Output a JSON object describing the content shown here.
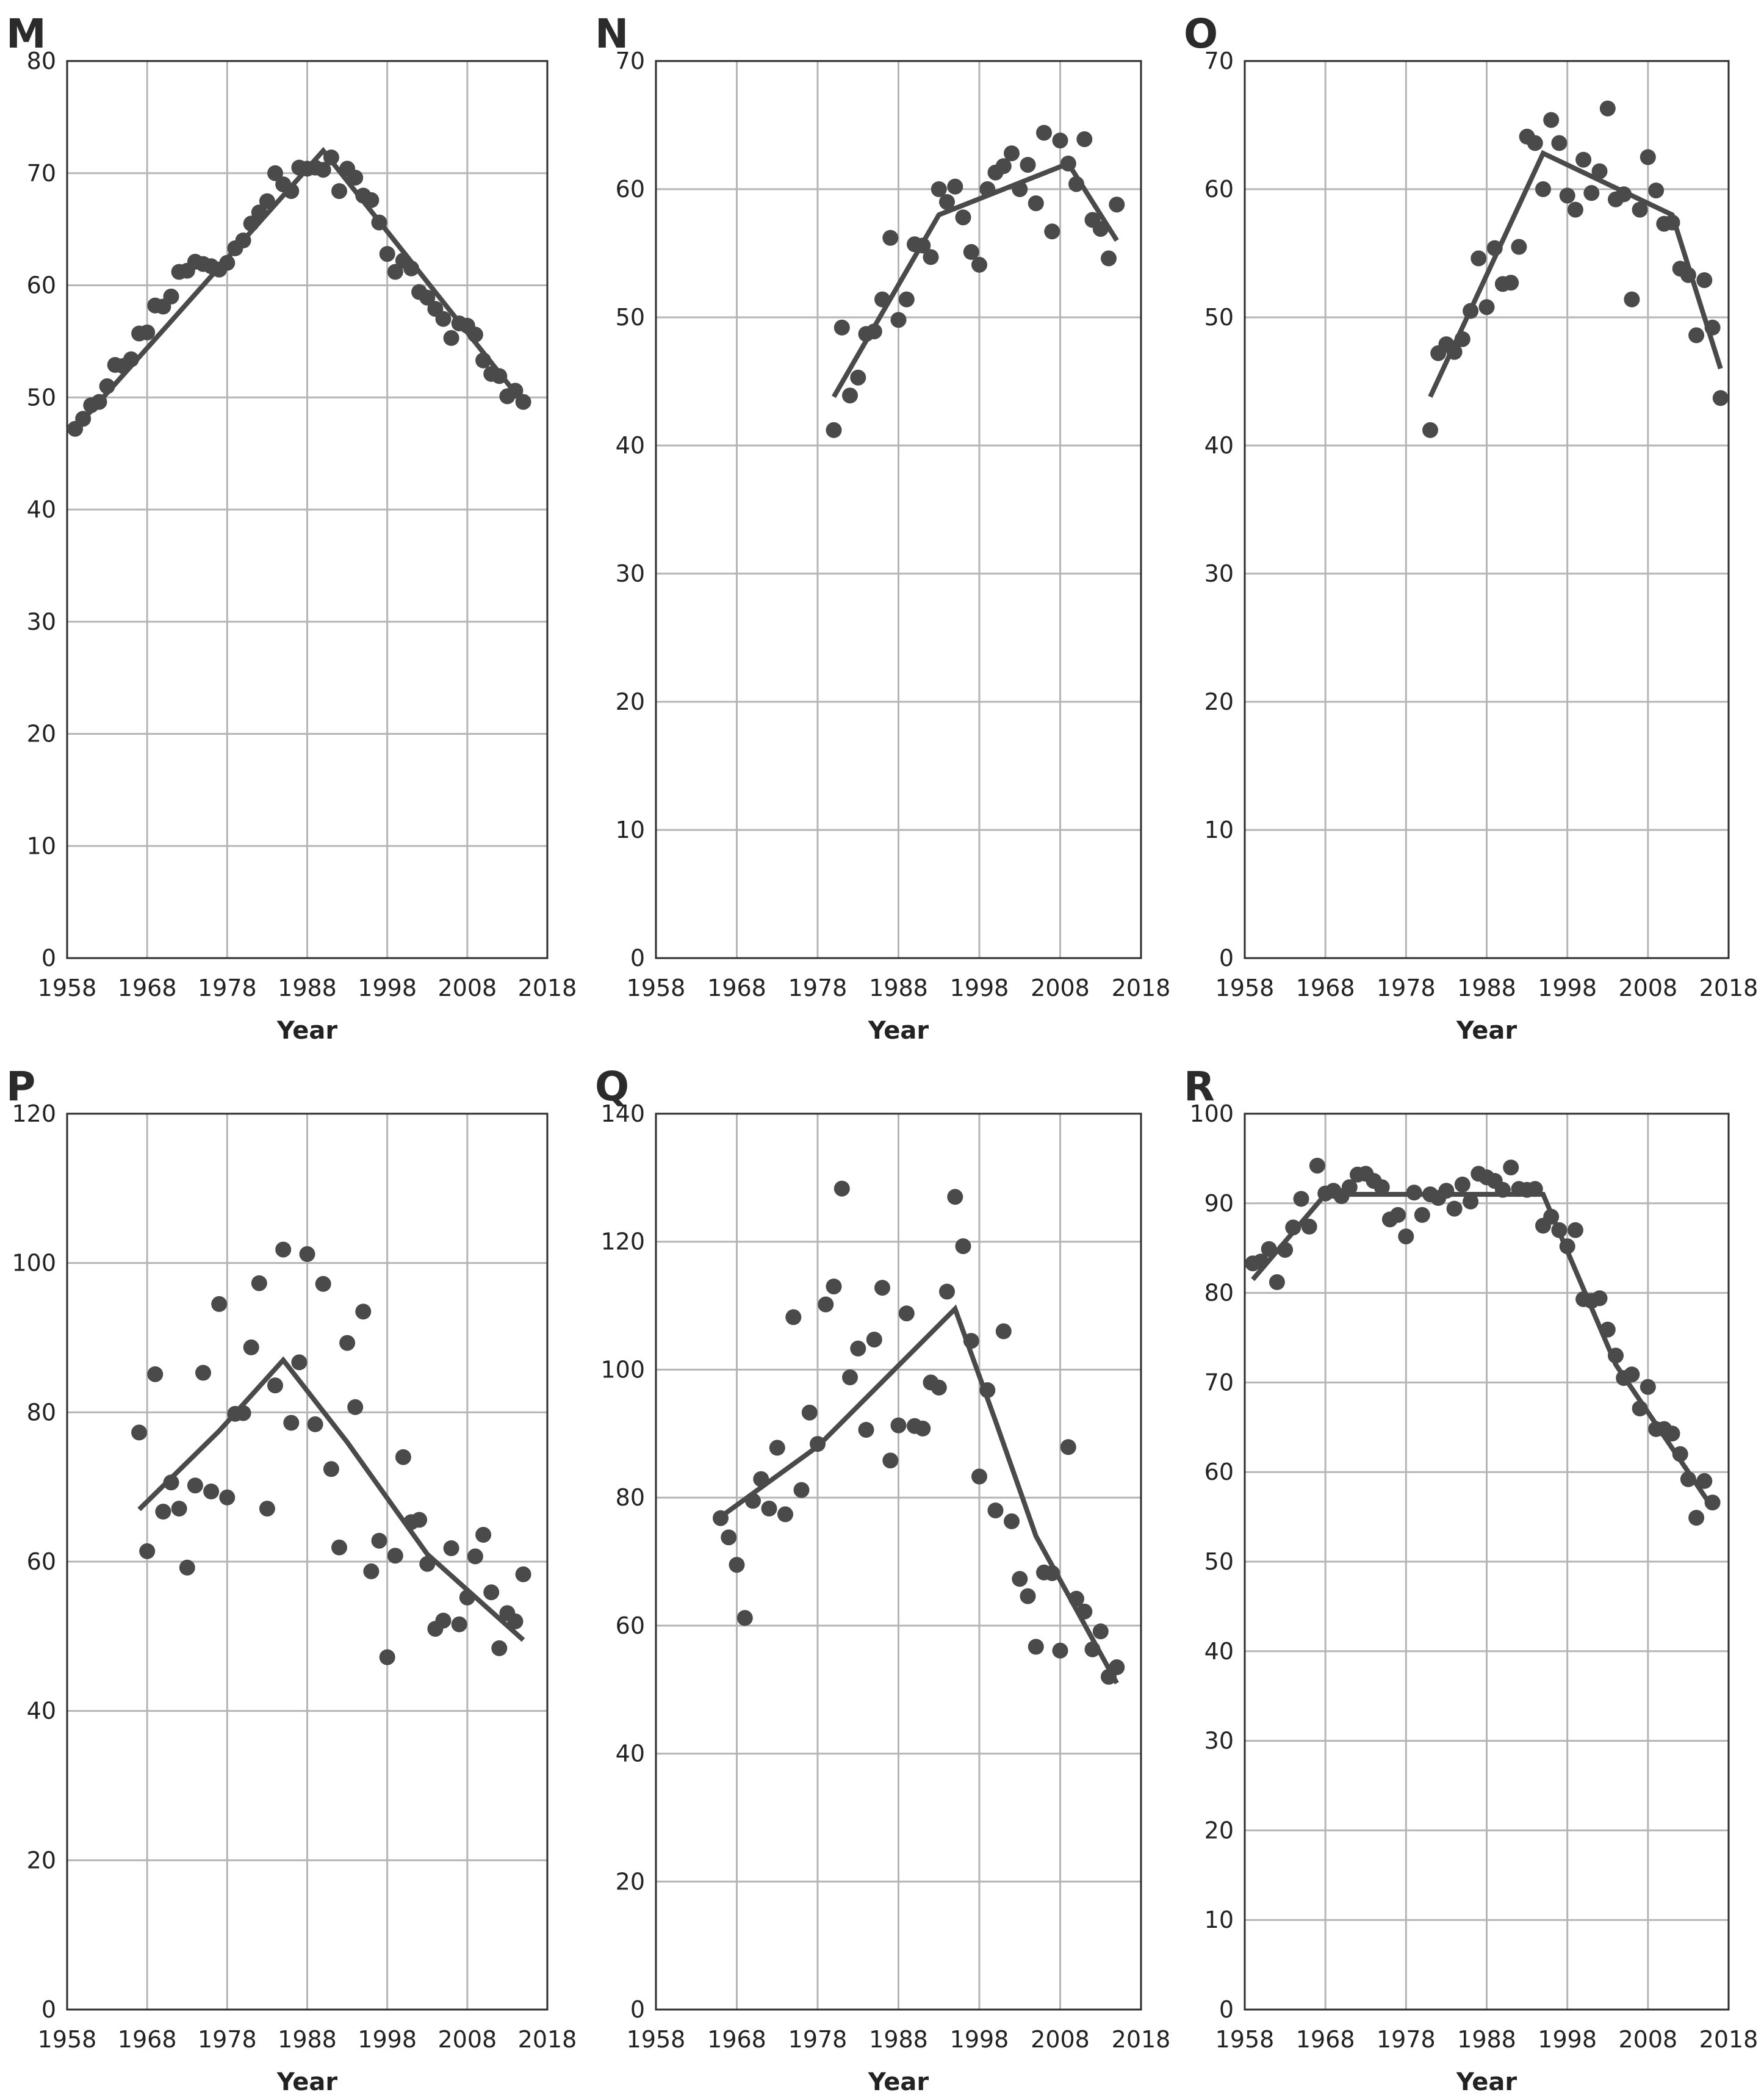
{
  "chart_data": [
    {
      "type": "scatter",
      "panel": "M",
      "xlabel": "Year",
      "xlim": [
        1958,
        2018
      ],
      "xticks": [
        1958,
        1968,
        1978,
        1988,
        1998,
        2008,
        2018
      ],
      "ylim": [
        0,
        80
      ],
      "yticks": [
        0,
        10,
        20,
        30,
        40,
        50,
        60,
        70,
        80
      ],
      "grid": true,
      "points": [
        [
          1959,
          47.2
        ],
        [
          1960,
          48.1
        ],
        [
          1961,
          49.3
        ],
        [
          1962,
          49.6
        ],
        [
          1963,
          51
        ],
        [
          1964,
          52.9
        ],
        [
          1965,
          52.8
        ],
        [
          1966,
          53.4
        ],
        [
          1967,
          55.7
        ],
        [
          1968,
          55.8
        ],
        [
          1969,
          58.2
        ],
        [
          1970,
          58.1
        ],
        [
          1971,
          59
        ],
        [
          1972,
          61.2
        ],
        [
          1973,
          61.3
        ],
        [
          1974,
          62.1
        ],
        [
          1975,
          61.9
        ],
        [
          1976,
          61.7
        ],
        [
          1977,
          61.4
        ],
        [
          1978,
          62
        ],
        [
          1979,
          63.3
        ],
        [
          1980,
          64
        ],
        [
          1981,
          65.5
        ],
        [
          1982,
          66.5
        ],
        [
          1983,
          67.5
        ],
        [
          1984,
          70
        ],
        [
          1985,
          69
        ],
        [
          1986,
          68.4
        ],
        [
          1987,
          70.5
        ],
        [
          1988,
          70.4
        ],
        [
          1989,
          70.5
        ],
        [
          1990,
          70.3
        ],
        [
          1991,
          71.4
        ],
        [
          1992,
          68.4
        ],
        [
          1993,
          70.4
        ],
        [
          1994,
          69.6
        ],
        [
          1995,
          68
        ],
        [
          1996,
          67.6
        ],
        [
          1997,
          65.6
        ],
        [
          1998,
          62.8
        ],
        [
          1999,
          61.2
        ],
        [
          2000,
          62.2
        ],
        [
          2001,
          61.5
        ],
        [
          2002,
          59.4
        ],
        [
          2003,
          58.9
        ],
        [
          2004,
          57.9
        ],
        [
          2005,
          57
        ],
        [
          2006,
          55.3
        ],
        [
          2007,
          56.6
        ],
        [
          2008,
          56.4
        ],
        [
          2009,
          55.6
        ],
        [
          2010,
          53.3
        ],
        [
          2011,
          52.1
        ],
        [
          2012,
          51.9
        ],
        [
          2013,
          50.1
        ],
        [
          2014,
          50.6
        ],
        [
          2015,
          49.6
        ]
      ],
      "fit": [
        [
          1959,
          47.2
        ],
        [
          1990,
          72
        ],
        [
          2015,
          49.5
        ]
      ]
    },
    {
      "type": "scatter",
      "panel": "N",
      "xlabel": "Year",
      "xlim": [
        1958,
        2018
      ],
      "xticks": [
        1958,
        1968,
        1978,
        1988,
        1998,
        2008,
        2018
      ],
      "ylim": [
        0,
        70
      ],
      "yticks": [
        0,
        10,
        20,
        30,
        40,
        50,
        60,
        70
      ],
      "grid": true,
      "points": [
        [
          1980,
          41.2
        ],
        [
          1981,
          49.2
        ],
        [
          1982,
          43.9
        ],
        [
          1983,
          45.3
        ],
        [
          1984,
          48.7
        ],
        [
          1985,
          48.9
        ],
        [
          1986,
          51.4
        ],
        [
          1987,
          56.2
        ],
        [
          1988,
          49.8
        ],
        [
          1989,
          51.4
        ],
        [
          1990,
          55.7
        ],
        [
          1991,
          55.6
        ],
        [
          1992,
          54.7
        ],
        [
          1993,
          60
        ],
        [
          1994,
          59
        ],
        [
          1995,
          60.2
        ],
        [
          1996,
          57.8
        ],
        [
          1997,
          55.1
        ],
        [
          1998,
          54.1
        ],
        [
          1999,
          60
        ],
        [
          2000,
          61.3
        ],
        [
          2001,
          61.8
        ],
        [
          2002,
          62.8
        ],
        [
          2003,
          60
        ],
        [
          2004,
          61.9
        ],
        [
          2005,
          58.9
        ],
        [
          2006,
          64.4
        ],
        [
          2007,
          56.7
        ],
        [
          2008,
          63.8
        ],
        [
          2009,
          62
        ],
        [
          2010,
          60.4
        ],
        [
          2011,
          63.9
        ],
        [
          2012,
          57.6
        ],
        [
          2013,
          56.9
        ],
        [
          2014,
          54.6
        ],
        [
          2015,
          58.8
        ]
      ],
      "fit": [
        [
          1980,
          43.8
        ],
        [
          1993,
          58
        ],
        [
          2009,
          62
        ],
        [
          2015,
          56
        ]
      ]
    },
    {
      "type": "scatter",
      "panel": "O",
      "xlabel": "Year",
      "xlim": [
        1958,
        2018
      ],
      "xticks": [
        1958,
        1968,
        1978,
        1988,
        1998,
        2008,
        2018
      ],
      "ylim": [
        0,
        70
      ],
      "yticks": [
        0,
        10,
        20,
        30,
        40,
        50,
        60,
        70
      ],
      "grid": true,
      "points": [
        [
          1981,
          41.2
        ],
        [
          1982,
          47.2
        ],
        [
          1983,
          47.9
        ],
        [
          1984,
          47.3
        ],
        [
          1985,
          48.3
        ],
        [
          1986,
          50.5
        ],
        [
          1987,
          54.6
        ],
        [
          1988,
          50.8
        ],
        [
          1989,
          55.4
        ],
        [
          1990,
          52.6
        ],
        [
          1991,
          52.7
        ],
        [
          1992,
          55.5
        ],
        [
          1993,
          64.1
        ],
        [
          1994,
          63.6
        ],
        [
          1995,
          60
        ],
        [
          1996,
          65.4
        ],
        [
          1997,
          63.6
        ],
        [
          1998,
          59.5
        ],
        [
          1999,
          58.4
        ],
        [
          2000,
          62.3
        ],
        [
          2001,
          59.7
        ],
        [
          2002,
          61.4
        ],
        [
          2003,
          66.3
        ],
        [
          2004,
          59.2
        ],
        [
          2005,
          59.6
        ],
        [
          2006,
          51.4
        ],
        [
          2007,
          58.4
        ],
        [
          2008,
          62.5
        ],
        [
          2009,
          59.9
        ],
        [
          2010,
          57.3
        ],
        [
          2011,
          57.4
        ],
        [
          2012,
          53.8
        ],
        [
          2013,
          53.3
        ],
        [
          2014,
          48.6
        ],
        [
          2015,
          52.9
        ],
        [
          2016,
          49.2
        ],
        [
          2017,
          43.7
        ]
      ],
      "fit": [
        [
          1981,
          43.8
        ],
        [
          1995,
          62.8
        ],
        [
          2011,
          58
        ],
        [
          2017,
          46
        ]
      ]
    },
    {
      "type": "scatter",
      "panel": "P",
      "xlabel": "Year",
      "xlim": [
        1958,
        2018
      ],
      "xticks": [
        1958,
        1968,
        1978,
        1988,
        1998,
        2008,
        2018
      ],
      "ylim": [
        0,
        120
      ],
      "yticks": [
        0,
        20,
        40,
        60,
        80,
        100,
        120
      ],
      "grid": true,
      "points": [
        [
          1967,
          77.3
        ],
        [
          1968,
          61.4
        ],
        [
          1969,
          85.1
        ],
        [
          1970,
          66.7
        ],
        [
          1971,
          70.6
        ],
        [
          1972,
          67.1
        ],
        [
          1973,
          59.2
        ],
        [
          1974,
          70.2
        ],
        [
          1975,
          85.3
        ],
        [
          1976,
          69.4
        ],
        [
          1977,
          94.5
        ],
        [
          1978,
          68.6
        ],
        [
          1979,
          79.8
        ],
        [
          1980,
          79.9
        ],
        [
          1981,
          88.7
        ],
        [
          1982,
          97.3
        ],
        [
          1983,
          67.1
        ],
        [
          1984,
          83.6
        ],
        [
          1985,
          101.8
        ],
        [
          1986,
          78.6
        ],
        [
          1987,
          86.7
        ],
        [
          1988,
          101.2
        ],
        [
          1989,
          78.4
        ],
        [
          1990,
          97.2
        ],
        [
          1991,
          72.4
        ],
        [
          1992,
          61.9
        ],
        [
          1993,
          89.3
        ],
        [
          1994,
          80.7
        ],
        [
          1995,
          93.5
        ],
        [
          1996,
          58.7
        ],
        [
          1997,
          62.8
        ],
        [
          1998,
          47.2
        ],
        [
          1999,
          60.8
        ],
        [
          2000,
          74
        ],
        [
          2001,
          65.3
        ],
        [
          2002,
          65.6
        ],
        [
          2003,
          59.7
        ],
        [
          2004,
          51
        ],
        [
          2005,
          52.1
        ],
        [
          2006,
          61.8
        ],
        [
          2007,
          51.6
        ],
        [
          2008,
          55.2
        ],
        [
          2009,
          60.7
        ],
        [
          2010,
          63.6
        ],
        [
          2011,
          55.9
        ],
        [
          2012,
          48.4
        ],
        [
          2013,
          53.1
        ],
        [
          2014,
          52
        ],
        [
          2015,
          58.3
        ]
      ],
      "fit": [
        [
          1967,
          67
        ],
        [
          1977,
          77.5
        ],
        [
          1985,
          87
        ],
        [
          1993,
          76
        ],
        [
          2003,
          61
        ],
        [
          2015,
          49.5
        ]
      ]
    },
    {
      "type": "scatter",
      "panel": "Q",
      "xlabel": "Year",
      "xlim": [
        1958,
        2018
      ],
      "xticks": [
        1958,
        1968,
        1978,
        1988,
        1998,
        2008,
        2018
      ],
      "ylim": [
        0,
        140
      ],
      "yticks": [
        0,
        20,
        40,
        60,
        80,
        100,
        120,
        140
      ],
      "grid": true,
      "points": [
        [
          1966,
          76.8
        ],
        [
          1967,
          73.8
        ],
        [
          1968,
          69.5
        ],
        [
          1969,
          61.2
        ],
        [
          1970,
          79.5
        ],
        [
          1971,
          82.9
        ],
        [
          1972,
          78.3
        ],
        [
          1973,
          87.8
        ],
        [
          1974,
          77.4
        ],
        [
          1975,
          108.2
        ],
        [
          1976,
          81.2
        ],
        [
          1977,
          93.3
        ],
        [
          1978,
          88.4
        ],
        [
          1979,
          110.2
        ],
        [
          1980,
          113
        ],
        [
          1981,
          128.3
        ],
        [
          1982,
          98.8
        ],
        [
          1983,
          103.3
        ],
        [
          1984,
          90.6
        ],
        [
          1985,
          104.7
        ],
        [
          1986,
          112.8
        ],
        [
          1987,
          85.8
        ],
        [
          1988,
          91.3
        ],
        [
          1989,
          108.8
        ],
        [
          1990,
          91.2
        ],
        [
          1991,
          90.8
        ],
        [
          1992,
          98
        ],
        [
          1993,
          97.2
        ],
        [
          1994,
          112.2
        ],
        [
          1995,
          127
        ],
        [
          1996,
          119.3
        ],
        [
          1997,
          104.5
        ],
        [
          1998,
          83.3
        ],
        [
          1999,
          96.8
        ],
        [
          2000,
          78
        ],
        [
          2001,
          106
        ],
        [
          2002,
          76.3
        ],
        [
          2003,
          67.3
        ],
        [
          2004,
          64.6
        ],
        [
          2005,
          56.7
        ],
        [
          2006,
          68.3
        ],
        [
          2007,
          68.2
        ],
        [
          2008,
          56.1
        ],
        [
          2009,
          87.9
        ],
        [
          2010,
          64.2
        ],
        [
          2011,
          62.2
        ],
        [
          2012,
          56.3
        ],
        [
          2013,
          59.1
        ],
        [
          2014,
          52
        ],
        [
          2015,
          53.5
        ]
      ],
      "fit": [
        [
          1966,
          77
        ],
        [
          1978,
          88
        ],
        [
          1995,
          109.5
        ],
        [
          2000,
          92
        ],
        [
          2005,
          74
        ],
        [
          2015,
          51
        ]
      ]
    },
    {
      "type": "scatter",
      "panel": "R",
      "xlabel": "Year",
      "xlim": [
        1958,
        2018
      ],
      "xticks": [
        1958,
        1968,
        1978,
        1988,
        1998,
        2008,
        2018
      ],
      "ylim": [
        0,
        100
      ],
      "yticks": [
        0,
        10,
        20,
        30,
        40,
        50,
        60,
        70,
        80,
        90,
        100
      ],
      "grid": true,
      "points": [
        [
          1959,
          83.3
        ],
        [
          1960,
          83.5
        ],
        [
          1961,
          84.9
        ],
        [
          1962,
          81.2
        ],
        [
          1963,
          84.8
        ],
        [
          1964,
          87.3
        ],
        [
          1965,
          90.5
        ],
        [
          1966,
          87.4
        ],
        [
          1967,
          94.2
        ],
        [
          1968,
          91.1
        ],
        [
          1969,
          91.4
        ],
        [
          1970,
          90.8
        ],
        [
          1971,
          91.8
        ],
        [
          1972,
          93.2
        ],
        [
          1973,
          93.3
        ],
        [
          1974,
          92.5
        ],
        [
          1975,
          91.8
        ],
        [
          1976,
          88.2
        ],
        [
          1977,
          88.7
        ],
        [
          1978,
          86.3
        ],
        [
          1979,
          91.2
        ],
        [
          1980,
          88.7
        ],
        [
          1981,
          91
        ],
        [
          1982,
          90.6
        ],
        [
          1983,
          91.4
        ],
        [
          1984,
          89.4
        ],
        [
          1985,
          92.1
        ],
        [
          1986,
          90.2
        ],
        [
          1987,
          93.3
        ],
        [
          1988,
          92.9
        ],
        [
          1989,
          92.5
        ],
        [
          1990,
          91.5
        ],
        [
          1991,
          94
        ],
        [
          1992,
          91.6
        ],
        [
          1993,
          91.5
        ],
        [
          1994,
          91.6
        ],
        [
          1995,
          87.5
        ],
        [
          1996,
          88.5
        ],
        [
          1997,
          87
        ],
        [
          1998,
          85.2
        ],
        [
          1999,
          87
        ],
        [
          2000,
          79.3
        ],
        [
          2001,
          79.1
        ],
        [
          2002,
          79.4
        ],
        [
          2003,
          75.9
        ],
        [
          2004,
          73
        ],
        [
          2005,
          70.5
        ],
        [
          2006,
          70.9
        ],
        [
          2007,
          67.1
        ],
        [
          2008,
          69.5
        ],
        [
          2009,
          64.8
        ],
        [
          2010,
          64.8
        ],
        [
          2011,
          64.3
        ],
        [
          2012,
          62
        ],
        [
          2013,
          59.2
        ],
        [
          2014,
          54.9
        ],
        [
          2015,
          59
        ],
        [
          2016,
          56.6
        ]
      ],
      "fit": [
        [
          1959,
          81.5
        ],
        [
          1968,
          91
        ],
        [
          1995,
          91
        ],
        [
          2004,
          72
        ],
        [
          2016,
          56
        ]
      ]
    }
  ]
}
